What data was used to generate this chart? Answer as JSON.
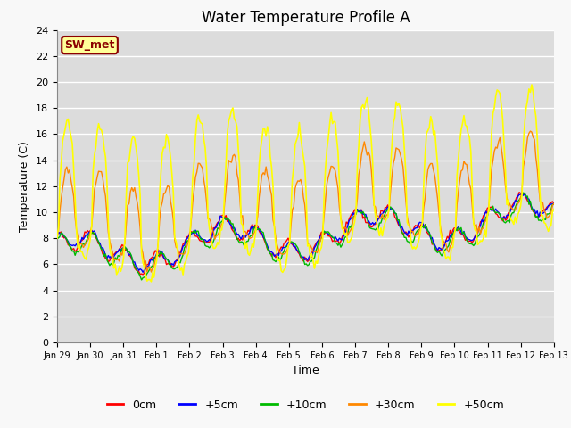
{
  "title": "Water Temperature Profile A",
  "xlabel": "Time",
  "ylabel": "Temperature (C)",
  "ylim": [
    0,
    24
  ],
  "yticks": [
    0,
    2,
    4,
    6,
    8,
    10,
    12,
    14,
    16,
    18,
    20,
    22,
    24
  ],
  "x_labels": [
    "Jan 29",
    "Jan 30",
    "Jan 31",
    "Feb 1",
    "Feb 2",
    "Feb 3",
    "Feb 4",
    "Feb 5",
    "Feb 6",
    "Feb 7",
    "Feb 8",
    "Feb 9",
    "Feb 10",
    "Feb 11",
    "Feb 12",
    "Feb 13"
  ],
  "annotation_text": "SW_met",
  "annotation_color": "#8B0000",
  "annotation_bg": "#FFFF99",
  "series_colors": [
    "#FF0000",
    "#0000FF",
    "#00BB00",
    "#FF8800",
    "#FFFF00"
  ],
  "series_labels": [
    "0cm",
    "+5cm",
    "+10cm",
    "+30cm",
    "+50cm"
  ],
  "series_linewidths": [
    1.0,
    1.0,
    1.0,
    1.0,
    1.2
  ],
  "background_color": "#DCDCDC",
  "fig_facecolor": "#F8F8F8",
  "grid_color": "#FFFFFF",
  "title_fontsize": 12,
  "label_fontsize": 9,
  "tick_fontsize": 8
}
